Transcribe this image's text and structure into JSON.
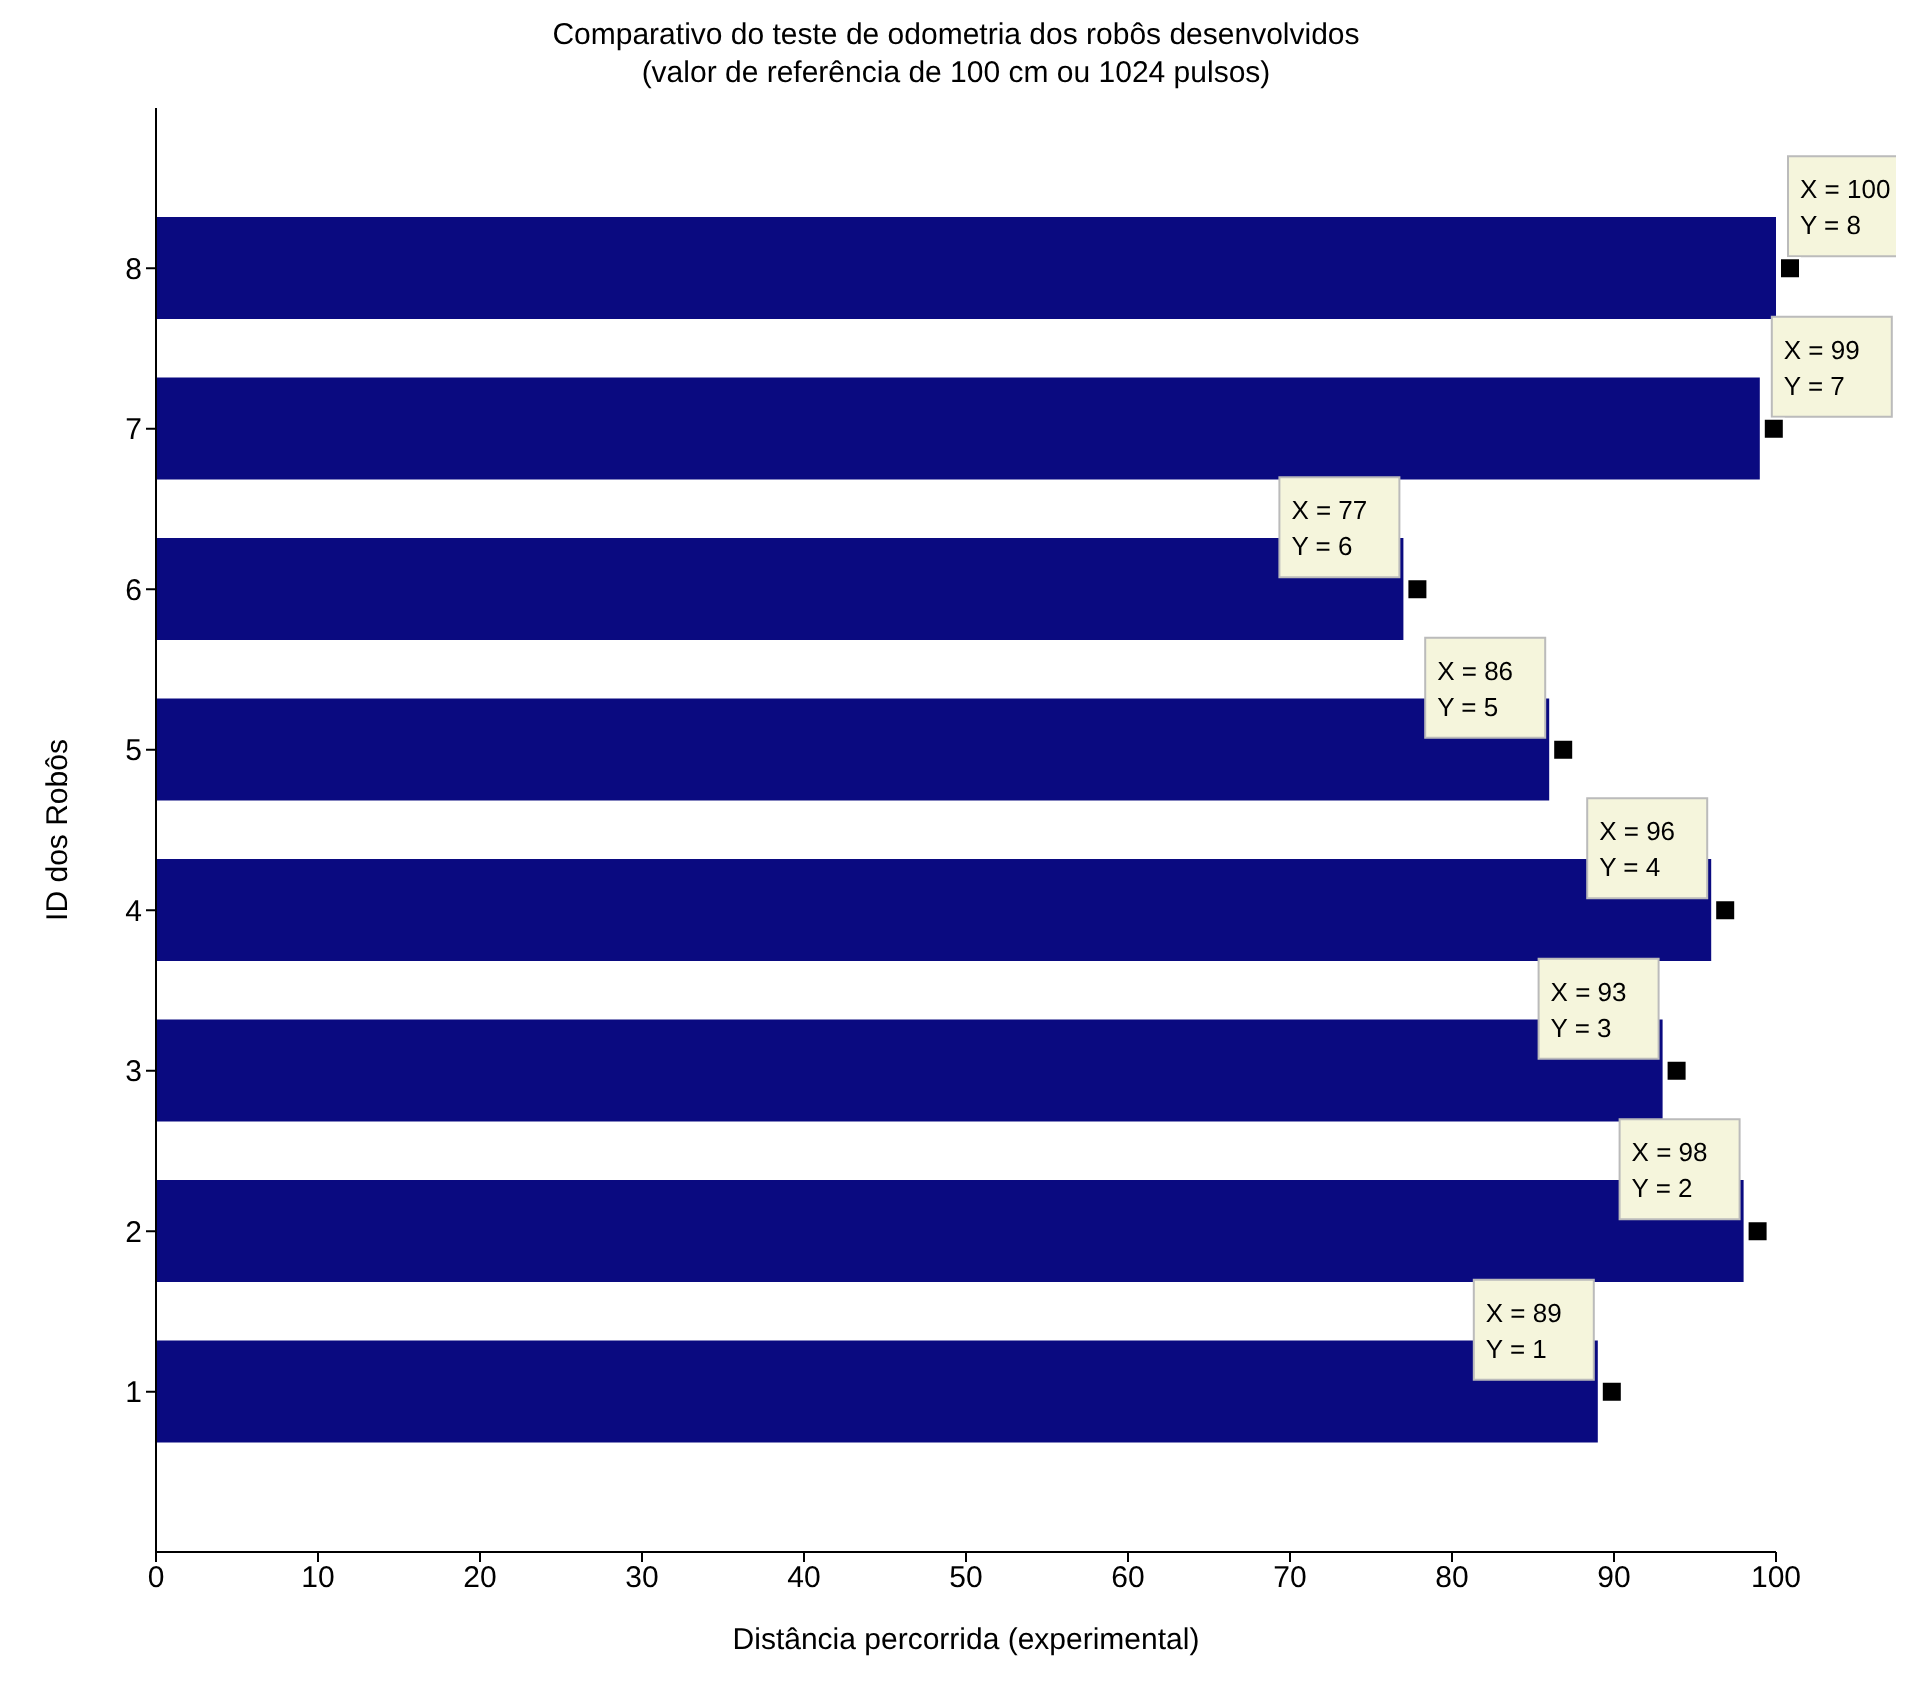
{
  "chart_data": {
    "type": "bar",
    "orientation": "horizontal",
    "title": "Comparativo do teste de odometria dos robôs desenvolvidos",
    "subtitle": "(valor de referência de 100 cm ou 1024 pulsos)",
    "xlabel": "Distância percorrida (experimental)",
    "ylabel": "ID dos Robôs",
    "categories": [
      "8",
      "7",
      "6",
      "5",
      "4",
      "3",
      "2",
      "1"
    ],
    "values": [
      100,
      99,
      77,
      86,
      96,
      93,
      98,
      89
    ],
    "color": "#0a0a80",
    "xlim": [
      0,
      100
    ],
    "xticks": [
      0,
      10,
      20,
      30,
      40,
      50,
      60,
      70,
      80,
      90,
      100
    ],
    "annotations": [
      {
        "text": "X = 100\nY = 8",
        "x": 100,
        "y": "8"
      },
      {
        "text": "X = 99\nY = 7",
        "x": 99,
        "y": "7"
      },
      {
        "text": "X = 77\nY = 6",
        "x": 77,
        "y": "6"
      },
      {
        "text": "X = 86\nY = 5",
        "x": 86,
        "y": "5"
      },
      {
        "text": "X = 96\nY = 4",
        "x": 96,
        "y": "4"
      },
      {
        "text": "X = 93\nY = 3",
        "x": 93,
        "y": "3"
      },
      {
        "text": "X = 98\nY = 2",
        "x": 98,
        "y": "2"
      },
      {
        "text": "X = 89\nY = 1",
        "x": 89,
        "y": "1"
      }
    ]
  }
}
